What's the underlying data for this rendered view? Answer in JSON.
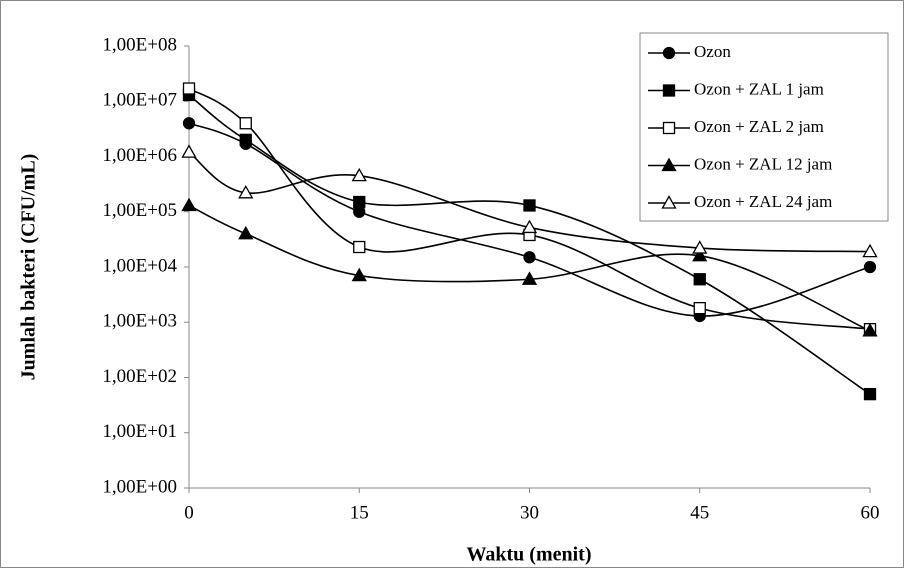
{
  "chart_data": {
    "type": "line",
    "x_label": "Waktu (menit)",
    "y_label": "Jumlah bakteri (CFU/mL)",
    "x": [
      0,
      5,
      15,
      30,
      45,
      60
    ],
    "xlim": [
      0,
      60
    ],
    "xticks": [
      0,
      15,
      30,
      45,
      60
    ],
    "ylim": [
      1,
      100000000
    ],
    "log_y": true,
    "yticks": [
      {
        "value": 1,
        "label": "1,00E+00"
      },
      {
        "value": 10,
        "label": "1,00E+01"
      },
      {
        "value": 100,
        "label": "1,00E+02"
      },
      {
        "value": 1000,
        "label": "1,00E+03"
      },
      {
        "value": 10000,
        "label": "1,00E+04"
      },
      {
        "value": 100000,
        "label": "1,00E+05"
      },
      {
        "value": 1000000,
        "label": "1,00E+06"
      },
      {
        "value": 10000000,
        "label": "1,00E+07"
      },
      {
        "value": 100000000,
        "label": "1,00E+08"
      }
    ],
    "legend": "top-right",
    "smooth": true,
    "series": [
      {
        "name": "Ozon",
        "color": "#000000",
        "marker": "circle",
        "filled": true,
        "values": [
          4000000,
          1700000,
          100000,
          15000,
          1300,
          10000
        ]
      },
      {
        "name": "Ozon + ZAL 1 jam",
        "color": "#000000",
        "marker": "square",
        "filled": true,
        "values": [
          13000000,
          2000000,
          150000,
          130000,
          6000,
          50
        ]
      },
      {
        "name": "Ozon + ZAL 2 jam",
        "color": "#000000",
        "marker": "square",
        "filled": false,
        "values": [
          17000000,
          4000000,
          23000,
          38000,
          1800,
          750
        ]
      },
      {
        "name": "Ozon + ZAL 12 jam",
        "color": "#000000",
        "marker": "triangle",
        "filled": true,
        "values": [
          130000,
          40000,
          7000,
          6000,
          16000,
          700
        ]
      },
      {
        "name": "Ozon + ZAL 24 jam",
        "color": "#000000",
        "marker": "triangle",
        "filled": false,
        "values": [
          1200000,
          220000,
          450000,
          52000,
          22000,
          19000
        ]
      }
    ]
  }
}
